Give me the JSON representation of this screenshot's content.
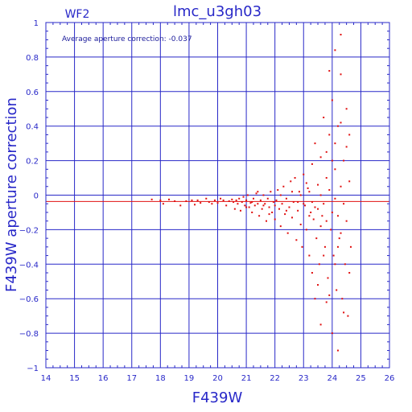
{
  "chart_data": {
    "type": "scatter",
    "title": "lmc_u3gh03",
    "chip_label": "WF2",
    "annotation": "Average aperture correction: -0.037",
    "xlabel": "F439W",
    "ylabel": "F439W aperture correction",
    "xlim": [
      14,
      26
    ],
    "ylim": [
      -1,
      1
    ],
    "x_ticks": [
      "14",
      "15",
      "16",
      "17",
      "18",
      "19",
      "20",
      "21",
      "22",
      "23",
      "24",
      "25",
      "26"
    ],
    "y_ticks": [
      "1",
      "0.8",
      "0.6",
      "0.4",
      "0.2",
      "0",
      "−0.2",
      "−0.4",
      "−0.6",
      "−0.8",
      "−1"
    ],
    "grid": true,
    "reference_lines": [
      {
        "y": 0,
        "color": "#2828c8"
      },
      {
        "y": -0.037,
        "color": "#e01010"
      }
    ],
    "point_color": "#e01010",
    "axis_color": "#2828c8",
    "series": [
      {
        "points": [
          [
            17.7,
            -0.025
          ],
          [
            18.0,
            -0.03
          ],
          [
            18.1,
            -0.05
          ],
          [
            18.3,
            -0.025
          ],
          [
            18.5,
            -0.035
          ],
          [
            18.7,
            -0.06
          ],
          [
            18.9,
            -0.035
          ],
          [
            19.1,
            -0.03
          ],
          [
            19.2,
            -0.055
          ],
          [
            19.3,
            -0.03
          ],
          [
            19.4,
            -0.045
          ],
          [
            19.6,
            -0.02
          ],
          [
            19.7,
            -0.04
          ],
          [
            19.8,
            -0.05
          ],
          [
            19.9,
            -0.03
          ],
          [
            20.0,
            -0.045
          ],
          [
            20.1,
            -0.02
          ],
          [
            20.2,
            -0.03
          ],
          [
            20.3,
            -0.06
          ],
          [
            20.4,
            -0.035
          ],
          [
            20.5,
            -0.025
          ],
          [
            20.55,
            -0.04
          ],
          [
            20.6,
            -0.08
          ],
          [
            20.65,
            -0.03
          ],
          [
            20.7,
            -0.05
          ],
          [
            20.75,
            -0.02
          ],
          [
            20.8,
            -0.09
          ],
          [
            20.85,
            -0.04
          ],
          [
            20.9,
            -0.01
          ],
          [
            20.95,
            -0.06
          ],
          [
            21.0,
            -0.03
          ],
          [
            21.05,
            0.0
          ],
          [
            21.1,
            -0.07
          ],
          [
            21.15,
            -0.045
          ],
          [
            21.2,
            -0.1
          ],
          [
            21.25,
            -0.02
          ],
          [
            21.3,
            -0.06
          ],
          [
            21.35,
            0.01
          ],
          [
            21.4,
            -0.05
          ],
          [
            21.45,
            -0.12
          ],
          [
            21.5,
            -0.03
          ],
          [
            21.55,
            -0.08
          ],
          [
            21.6,
            0.0
          ],
          [
            21.65,
            -0.05
          ],
          [
            21.7,
            -0.15
          ],
          [
            21.75,
            -0.02
          ],
          [
            21.8,
            -0.07
          ],
          [
            21.85,
            0.02
          ],
          [
            21.9,
            -0.1
          ],
          [
            21.95,
            -0.04
          ],
          [
            22.0,
            -0.14
          ],
          [
            22.05,
            -0.03
          ],
          [
            22.1,
            0.03
          ],
          [
            22.15,
            -0.08
          ],
          [
            22.2,
            -0.18
          ],
          [
            22.25,
            -0.05
          ],
          [
            22.3,
            0.05
          ],
          [
            22.35,
            -0.11
          ],
          [
            22.4,
            -0.02
          ],
          [
            22.45,
            -0.22
          ],
          [
            22.5,
            -0.07
          ],
          [
            22.55,
            0.08
          ],
          [
            22.6,
            -0.13
          ],
          [
            22.65,
            -0.04
          ],
          [
            22.7,
            0.1
          ],
          [
            22.75,
            -0.26
          ],
          [
            22.8,
            -0.09
          ],
          [
            22.85,
            0.02
          ],
          [
            22.9,
            -0.17
          ],
          [
            22.95,
            -0.3
          ],
          [
            23.0,
            0.12
          ],
          [
            23.05,
            -0.06
          ],
          [
            23.1,
            -0.2
          ],
          [
            23.15,
            0.04
          ],
          [
            23.2,
            -0.35
          ],
          [
            23.25,
            -0.1
          ],
          [
            23.3,
            0.18
          ],
          [
            23.35,
            -0.14
          ],
          [
            23.4,
            0.3
          ],
          [
            23.45,
            -0.25
          ],
          [
            23.5,
            0.06
          ],
          [
            23.55,
            -0.4
          ],
          [
            23.6,
            0.22
          ],
          [
            23.65,
            -0.12
          ],
          [
            23.7,
            0.45
          ],
          [
            23.75,
            -0.3
          ],
          [
            23.8,
            0.1
          ],
          [
            23.85,
            -0.48
          ],
          [
            23.9,
            0.35
          ],
          [
            23.95,
            -0.2
          ],
          [
            24.0,
            0.55
          ],
          [
            24.05,
            -0.35
          ],
          [
            24.1,
            0.15
          ],
          [
            24.15,
            -0.55
          ],
          [
            24.2,
            0.4
          ],
          [
            24.25,
            -0.25
          ],
          [
            24.3,
            0.7
          ],
          [
            24.35,
            -0.6
          ],
          [
            24.4,
            0.2
          ],
          [
            24.45,
            -0.4
          ],
          [
            24.5,
            0.5
          ],
          [
            24.55,
            -0.7
          ],
          [
            24.6,
            0.08
          ],
          [
            24.65,
            -0.3
          ],
          [
            23.2,
            0.02
          ],
          [
            23.3,
            -0.04
          ],
          [
            23.5,
            -0.08
          ],
          [
            23.6,
            0.0
          ],
          [
            23.7,
            -0.05
          ],
          [
            23.8,
            -0.15
          ],
          [
            23.9,
            0.03
          ],
          [
            24.0,
            -0.1
          ],
          [
            24.1,
            -0.02
          ],
          [
            24.2,
            -0.12
          ],
          [
            24.3,
            0.05
          ],
          [
            22.9,
            0.0
          ],
          [
            23.0,
            -0.05
          ],
          [
            23.1,
            0.07
          ],
          [
            23.2,
            -0.12
          ],
          [
            23.4,
            -0.07
          ],
          [
            23.6,
            -0.18
          ],
          [
            23.8,
            0.25
          ],
          [
            24.0,
            0.2
          ],
          [
            24.2,
            -0.3
          ],
          [
            24.4,
            -0.05
          ],
          [
            23.4,
            -0.6
          ],
          [
            23.6,
            -0.75
          ],
          [
            23.8,
            -0.62
          ],
          [
            24.0,
            -0.8
          ],
          [
            24.2,
            -0.9
          ],
          [
            24.4,
            -0.68
          ],
          [
            23.9,
            0.72
          ],
          [
            24.1,
            0.84
          ],
          [
            24.3,
            0.93
          ],
          [
            24.6,
            0.35
          ],
          [
            24.6,
            -0.45
          ],
          [
            22.0,
            -0.06
          ],
          [
            22.2,
            0.0
          ],
          [
            22.4,
            -0.09
          ],
          [
            22.6,
            0.02
          ],
          [
            22.8,
            -0.04
          ],
          [
            21.8,
            -0.11
          ],
          [
            21.6,
            -0.06
          ],
          [
            21.4,
            0.02
          ],
          [
            21.2,
            -0.04
          ],
          [
            21.0,
            -0.07
          ],
          [
            23.3,
            -0.45
          ],
          [
            23.5,
            -0.52
          ],
          [
            23.7,
            -0.35
          ],
          [
            23.9,
            -0.58
          ],
          [
            24.1,
            -0.4
          ],
          [
            24.3,
            -0.22
          ],
          [
            24.5,
            -0.15
          ],
          [
            24.1,
            0.3
          ],
          [
            24.5,
            0.28
          ],
          [
            24.3,
            0.42
          ]
        ]
      }
    ]
  }
}
